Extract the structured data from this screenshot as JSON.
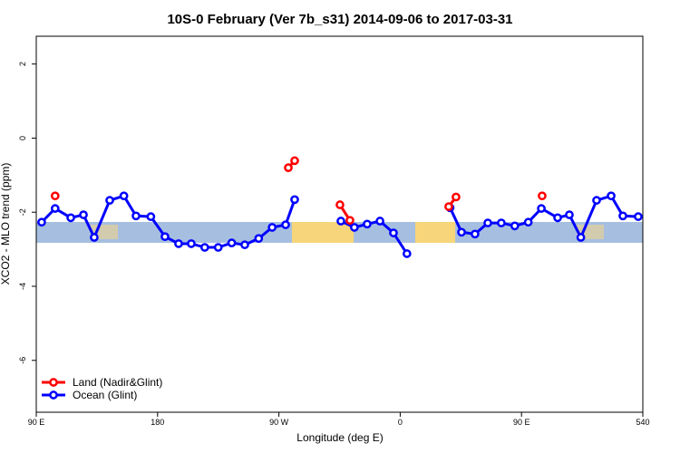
{
  "chart_data": {
    "type": "line",
    "title": "10S-0 February (Ver 7b_s31)   2014-09-06 to 2017-03-31",
    "xlabel": "Longitude (deg E)",
    "ylabel": "XCO2 - MLO trend (ppm)",
    "xlim": [
      90,
      540
    ],
    "ylim": [
      -7.4,
      2.75
    ],
    "xticks": [
      {
        "value": 90,
        "label": "90 E"
      },
      180,
      {
        "value": 270,
        "label": "90 W"
      },
      {
        "value": 360,
        "label": "0"
      },
      {
        "value": 450,
        "label": "90 E"
      },
      540
    ],
    "yticks": [
      -6,
      -4,
      -2,
      0,
      2
    ],
    "legend": "bottom-left",
    "series": [
      {
        "name": "Land (Nadir&Glint)",
        "color": "#ff0000",
        "x": [
          104,
          null,
          277,
          281.7,
          null,
          315.3,
          322.7,
          null,
          396,
          401.4,
          null,
          465.3
        ],
        "values": [
          -1.56,
          null,
          -0.8,
          -0.61,
          null,
          -1.8,
          -2.22,
          null,
          -1.85,
          -1.59,
          null,
          -1.56
        ]
      },
      {
        "name": "Ocean (Glint)",
        "color": "#0000ff",
        "x": [
          94,
          104,
          115.6,
          125,
          133,
          144.5,
          155,
          164,
          175,
          185.5,
          195.6,
          205,
          215,
          225,
          235,
          244.7,
          255,
          265,
          275,
          281.7,
          null,
          316,
          326,
          335.5,
          345,
          355,
          365,
          null,
          397,
          405.5,
          415.5,
          425,
          435,
          445,
          455,
          464.7,
          476.8,
          485.5,
          494,
          505.7,
          516.5,
          525.2,
          536.6
        ],
        "values": [
          -2.27,
          -1.9,
          -2.15,
          -2.07,
          -2.68,
          -1.68,
          -1.56,
          -2.1,
          -2.12,
          -2.66,
          -2.85,
          -2.85,
          -2.95,
          -2.95,
          -2.83,
          -2.88,
          -2.71,
          -2.41,
          -2.34,
          -1.66,
          null,
          -2.24,
          -2.41,
          -2.32,
          -2.24,
          -2.56,
          -3.12,
          null,
          -1.88,
          -2.54,
          -2.59,
          -2.29,
          -2.29,
          -2.37,
          -2.27,
          -1.9,
          -2.15,
          -2.07,
          -2.68,
          -1.68,
          -1.56,
          -2.1,
          -2.12
        ]
      }
    ]
  }
}
